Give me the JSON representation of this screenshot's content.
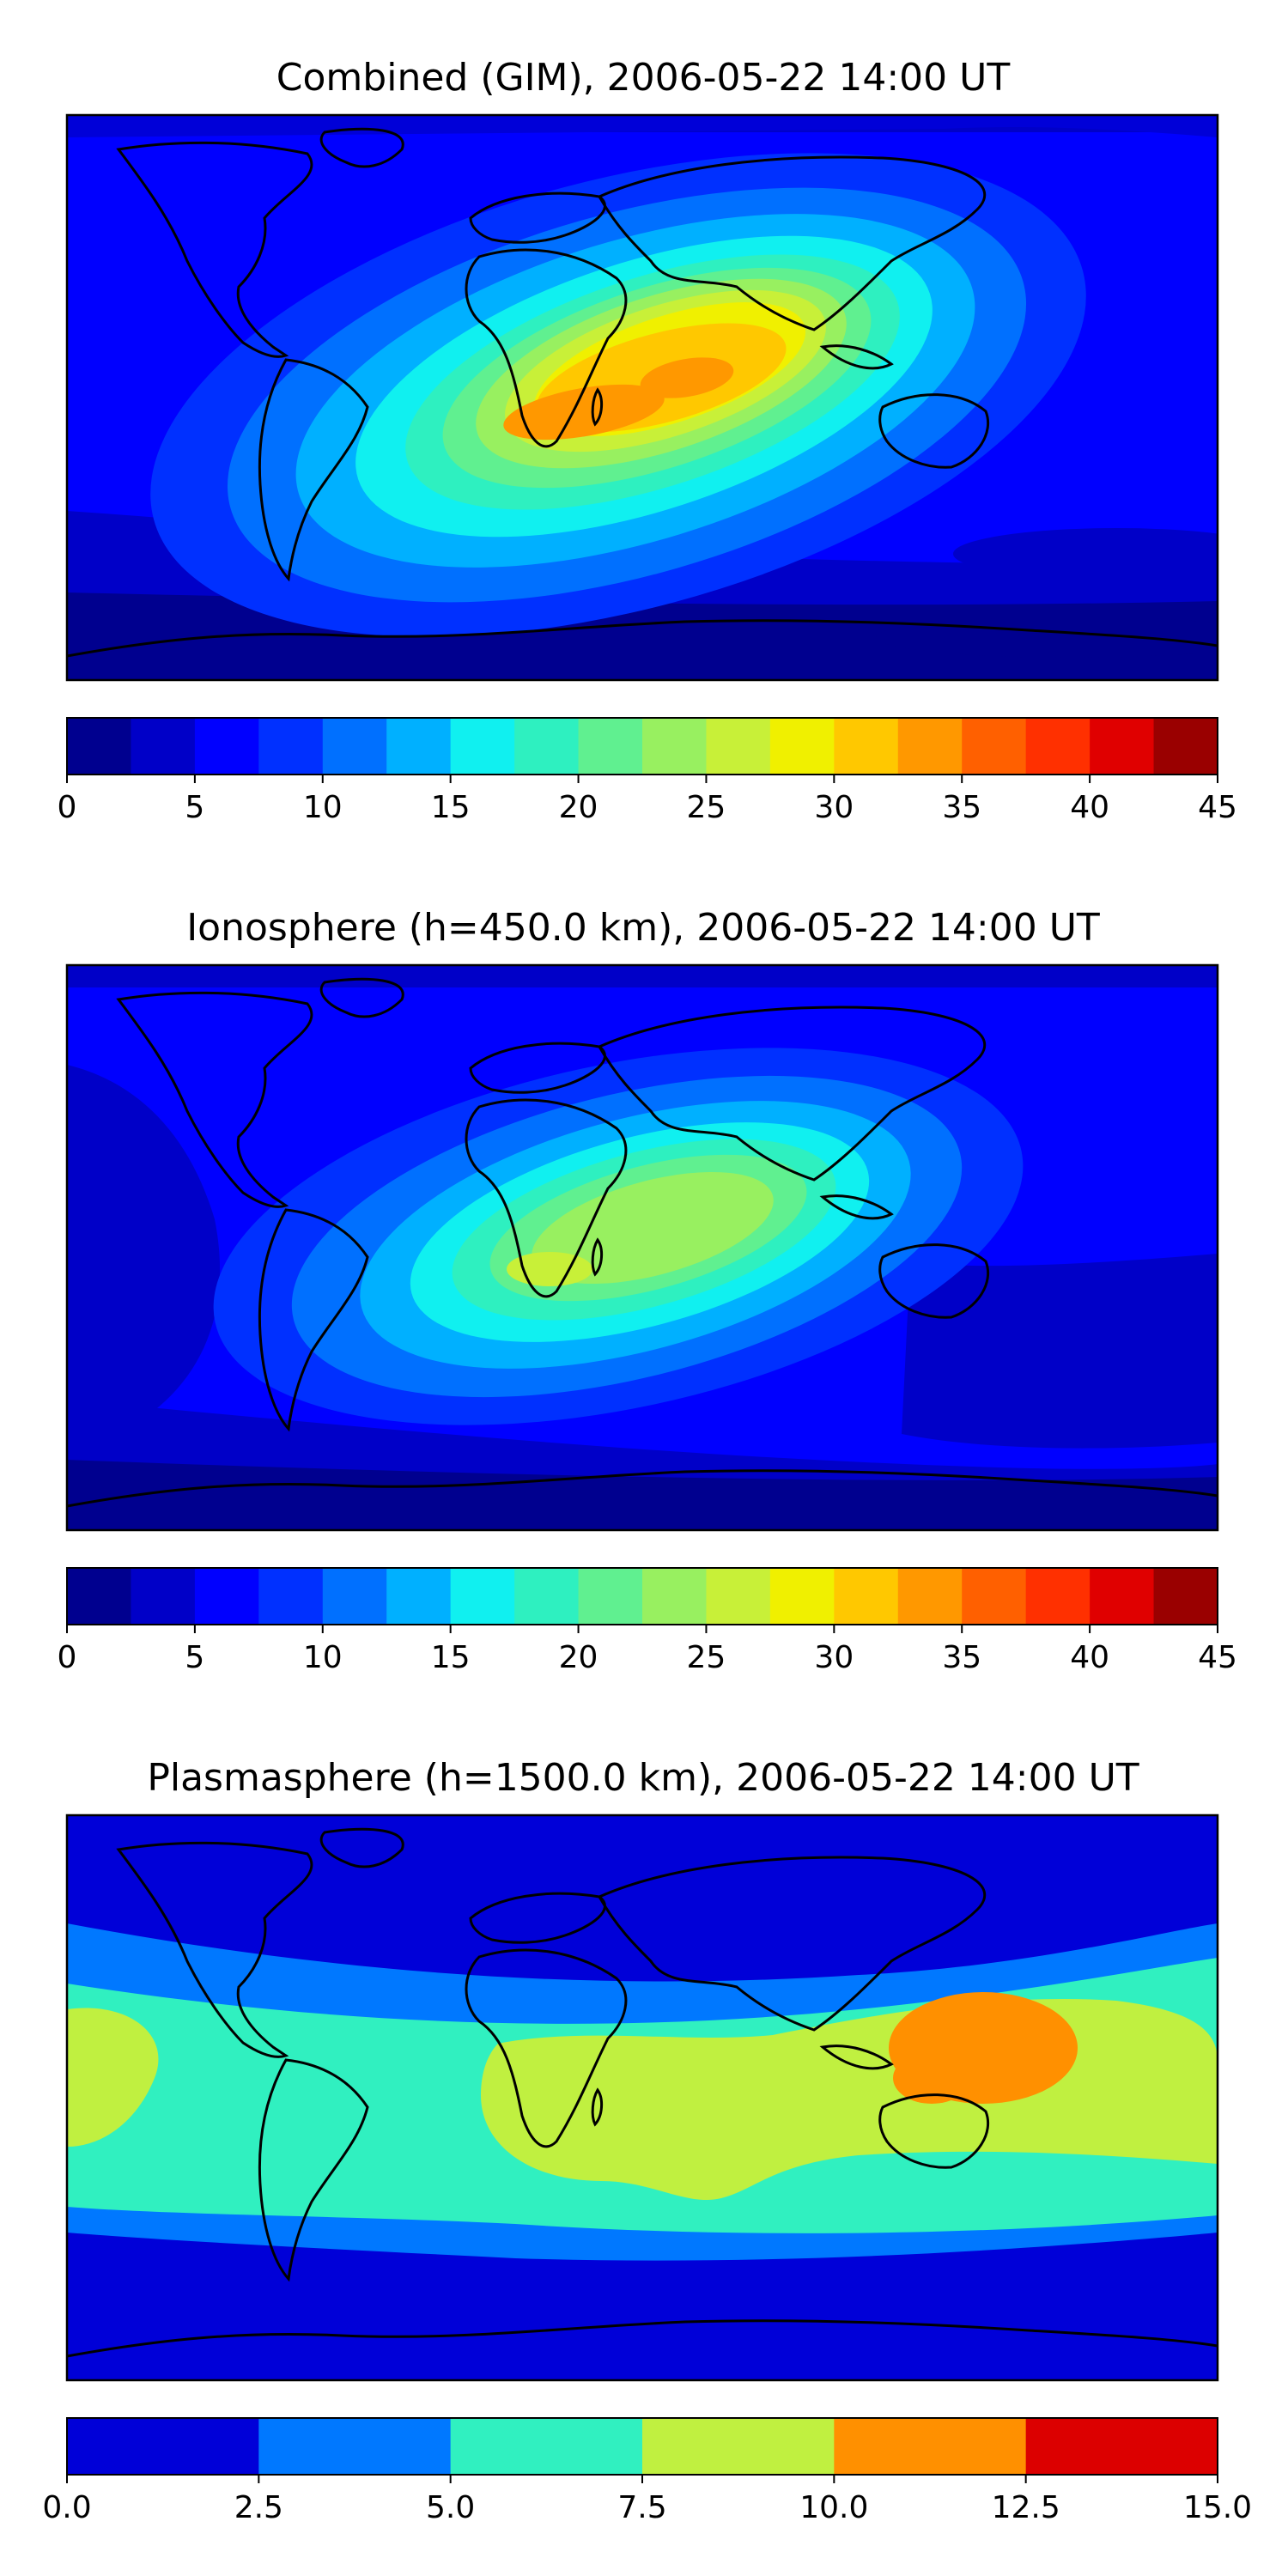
{
  "chart_data": [
    {
      "type": "heatmap",
      "title": "Combined (GIM), 2006-05-22 14:00 UT",
      "xlabel": "",
      "ylabel": "",
      "grid": false,
      "colorbar": {
        "levels": [
          0,
          2.5,
          5,
          7.5,
          10,
          12.5,
          15,
          17.5,
          20,
          22.5,
          25,
          27.5,
          30,
          32.5,
          35,
          37.5,
          40,
          42.5,
          45
        ],
        "colors": [
          "#00008f",
          "#0000c8",
          "#0000ff",
          "#0030ff",
          "#0070ff",
          "#00b0ff",
          "#10f0f0",
          "#2ef0c0",
          "#60f090",
          "#98f060",
          "#c8f038",
          "#f0f000",
          "#ffc800",
          "#ff9800",
          "#ff6000",
          "#ff3000",
          "#e00000",
          "#9a0000"
        ],
        "tick_labels": [
          "0",
          "5",
          "10",
          "15",
          "20",
          "25",
          "30",
          "35",
          "40",
          "45"
        ],
        "ticks": [
          0,
          5,
          10,
          15,
          20,
          25,
          30,
          35,
          40,
          45
        ]
      }
    },
    {
      "type": "heatmap",
      "title": "Ionosphere  (h=450.0 km), 2006-05-22 14:00 UT",
      "xlabel": "",
      "ylabel": "",
      "grid": false,
      "colorbar": {
        "levels": [
          0,
          2.5,
          5,
          7.5,
          10,
          12.5,
          15,
          17.5,
          20,
          22.5,
          25,
          27.5,
          30,
          32.5,
          35,
          37.5,
          40,
          42.5,
          45
        ],
        "colors": [
          "#00008f",
          "#0000c8",
          "#0000ff",
          "#0030ff",
          "#0070ff",
          "#00b0ff",
          "#10f0f0",
          "#2ef0c0",
          "#60f090",
          "#98f060",
          "#c8f038",
          "#f0f000",
          "#ffc800",
          "#ff9800",
          "#ff6000",
          "#ff3000",
          "#e00000",
          "#9a0000"
        ],
        "tick_labels": [
          "0",
          "5",
          "10",
          "15",
          "20",
          "25",
          "30",
          "35",
          "40",
          "45"
        ],
        "ticks": [
          0,
          5,
          10,
          15,
          20,
          25,
          30,
          35,
          40,
          45
        ]
      }
    },
    {
      "type": "heatmap",
      "title": "Plasmasphere (h=1500.0 km), 2006-05-22 14:00 UT",
      "xlabel": "",
      "ylabel": "",
      "grid": false,
      "colorbar": {
        "levels": [
          0,
          2.5,
          5,
          7.5,
          10,
          12.5,
          15
        ],
        "colors": [
          "#0000d8",
          "#0078ff",
          "#30f0c0",
          "#c0f040",
          "#ff9000",
          "#dc0000"
        ],
        "tick_labels": [
          "0.0",
          "2.5",
          "5.0",
          "7.5",
          "10.0",
          "12.5",
          "15.0"
        ],
        "ticks": [
          0,
          2.5,
          5,
          7.5,
          10,
          12.5,
          15
        ]
      }
    }
  ]
}
